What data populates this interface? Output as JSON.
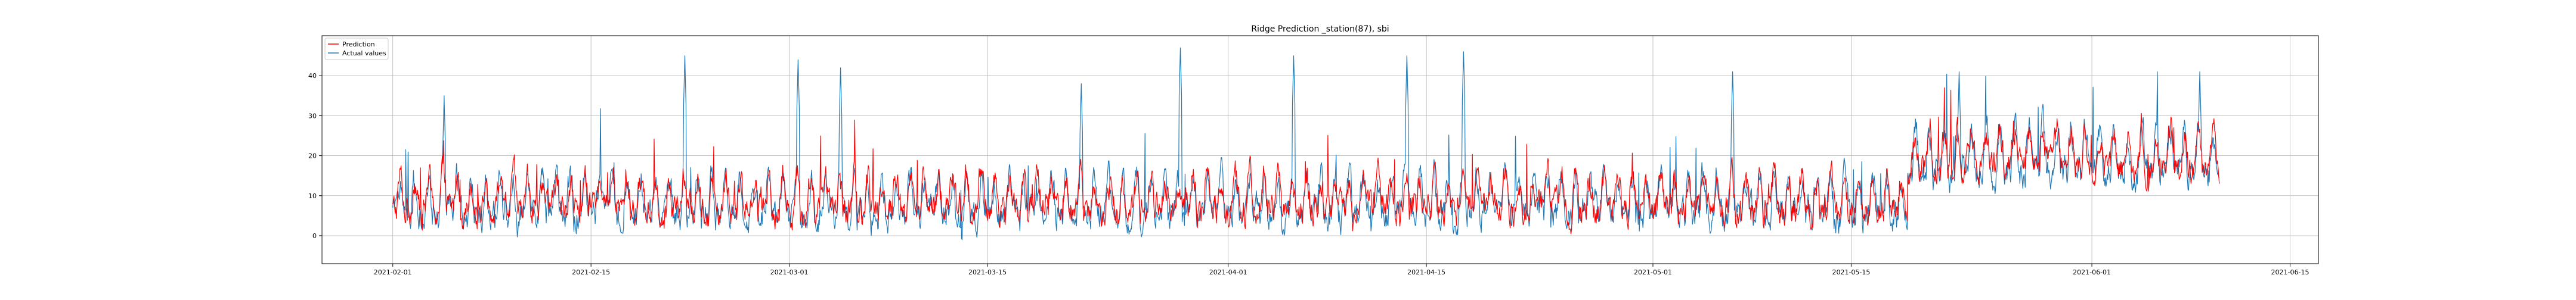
{
  "chart_data": {
    "type": "line",
    "title": "Ridge Prediction _station(87), sbi",
    "xlabel": "",
    "ylabel": "",
    "x_start": "2021-02-01",
    "x_end": "2021-06-10",
    "xlim": [
      "2021-01-27",
      "2021-06-17"
    ],
    "ylim": [
      -7,
      50
    ],
    "x_ticks": [
      "2021-02-01",
      "2021-02-15",
      "2021-03-01",
      "2021-03-15",
      "2021-04-01",
      "2021-04-15",
      "2021-05-01",
      "2021-05-15",
      "2021-06-01",
      "2021-06-15"
    ],
    "y_ticks": [
      0,
      10,
      20,
      30,
      40
    ],
    "grid": true,
    "legend_position": "top-left",
    "series": [
      {
        "name": "Prediction",
        "color": "#ff0000",
        "sampling": "hourly",
        "phases": [
          {
            "from": "2021-02-01",
            "to": "2021-05-19",
            "baseline": 9,
            "daily_amplitude": 8,
            "min": -4,
            "max": 30
          },
          {
            "from": "2021-05-19",
            "to": "2021-06-10",
            "baseline": 20,
            "daily_amplitude": 9,
            "min": 2,
            "max": 37
          }
        ]
      },
      {
        "name": "Actual values",
        "color": "#1f77b4",
        "sampling": "hourly",
        "phases": [
          {
            "from": "2021-02-01",
            "to": "2021-05-19",
            "baseline": 8,
            "daily_amplitude": 9,
            "min": -1,
            "max": 47
          },
          {
            "from": "2021-05-19",
            "to": "2021-06-10",
            "baseline": 19,
            "daily_amplitude": 11,
            "min": 2,
            "max": 41
          }
        ],
        "peaks": [
          {
            "x": "2021-02-04",
            "y": 35
          },
          {
            "x": "2021-02-21",
            "y": 45
          },
          {
            "x": "2021-03-01",
            "y": 44
          },
          {
            "x": "2021-03-04",
            "y": 42
          },
          {
            "x": "2021-03-21",
            "y": 38
          },
          {
            "x": "2021-03-28",
            "y": 47
          },
          {
            "x": "2021-04-05",
            "y": 45
          },
          {
            "x": "2021-04-13",
            "y": 45
          },
          {
            "x": "2021-04-17",
            "y": 46
          },
          {
            "x": "2021-05-06",
            "y": 41
          },
          {
            "x": "2021-05-22",
            "y": 41
          },
          {
            "x": "2021-06-08",
            "y": 41
          }
        ]
      }
    ]
  }
}
